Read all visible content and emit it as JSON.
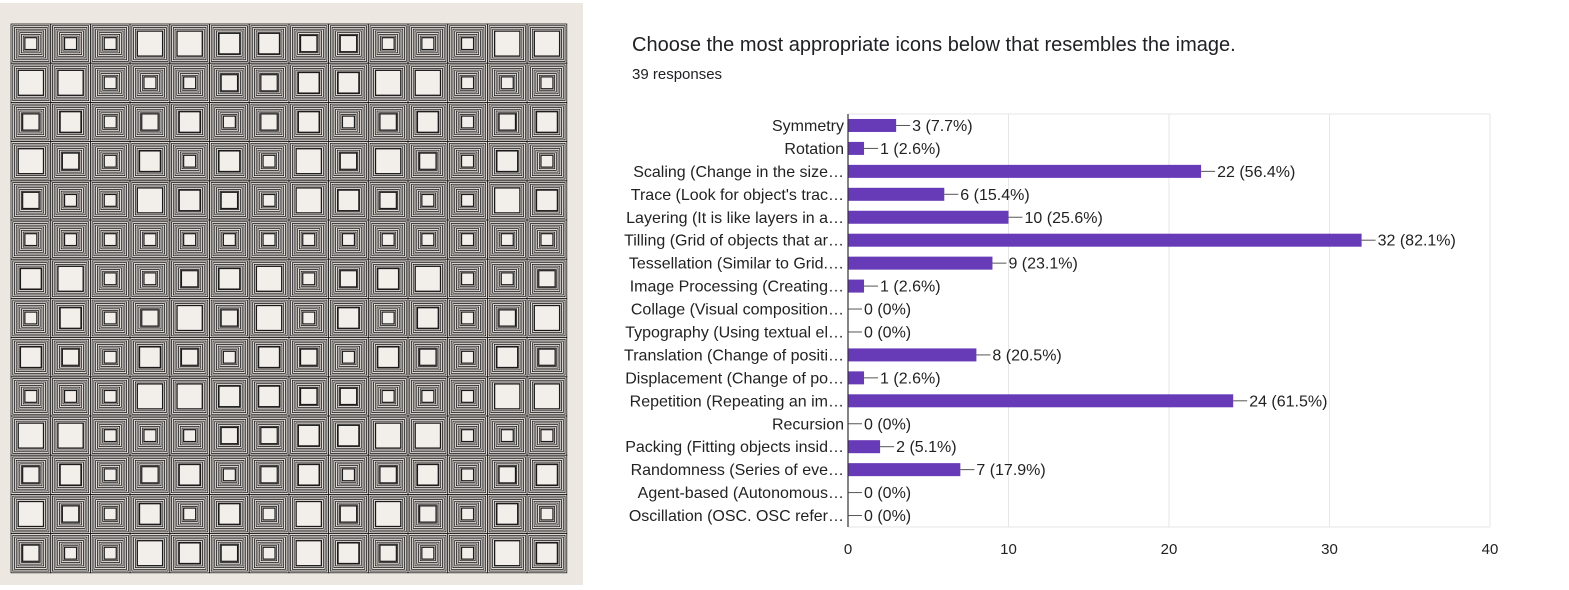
{
  "question": {
    "title": "Choose the most appropriate icons below that resembles the image.",
    "responses_label": "39 responses"
  },
  "artwork": {
    "description_icon": "op-art-concentric-squares-grid",
    "colors": {
      "paper": "#ede7e2",
      "ink": "#1a1a1a"
    }
  },
  "colors": {
    "bar": "#673ab7",
    "grid": "#e6e6e6",
    "axis": "#333333",
    "text": "#222222"
  },
  "chart_data": {
    "type": "bar",
    "orientation": "horizontal",
    "categories": [
      "Symmetry",
      "Rotation",
      "Scaling (Change in the size…",
      "Trace (Look for object's trac…",
      "Layering (It is like layers in a…",
      "Tilling (Grid of objects that ar…",
      "Tessellation (Similar to Grid.…",
      "Image Processing (Creating…",
      "Collage (Visual composition…",
      "Typography (Using textual el…",
      "Translation (Change of positi…",
      "Displacement (Change of po…",
      "Repetition (Repeating an im…",
      "Recursion",
      "Packing (Fitting objects insid…",
      "Randomness (Series of eve…",
      "Agent-based (Autonomous…",
      "Oscillation (OSC. OSC refer…"
    ],
    "values": [
      3,
      1,
      22,
      6,
      10,
      32,
      9,
      1,
      0,
      0,
      8,
      1,
      24,
      0,
      2,
      7,
      0,
      0
    ],
    "data_labels": [
      "3 (7.7%)",
      "1 (2.6%)",
      "22 (56.4%)",
      "6 (15.4%)",
      "10 (25.6%)",
      "32 (82.1%)",
      "9 (23.1%)",
      "1 (2.6%)",
      "0 (0%)",
      "0 (0%)",
      "8 (20.5%)",
      "1 (2.6%)",
      "24 (61.5%)",
      "0 (0%)",
      "2 (5.1%)",
      "7 (17.9%)",
      "0 (0%)",
      "0 (0%)"
    ],
    "xlim": [
      0,
      40
    ],
    "xticks": [
      0,
      10,
      20,
      30,
      40
    ],
    "grid": true,
    "legend": "none"
  }
}
